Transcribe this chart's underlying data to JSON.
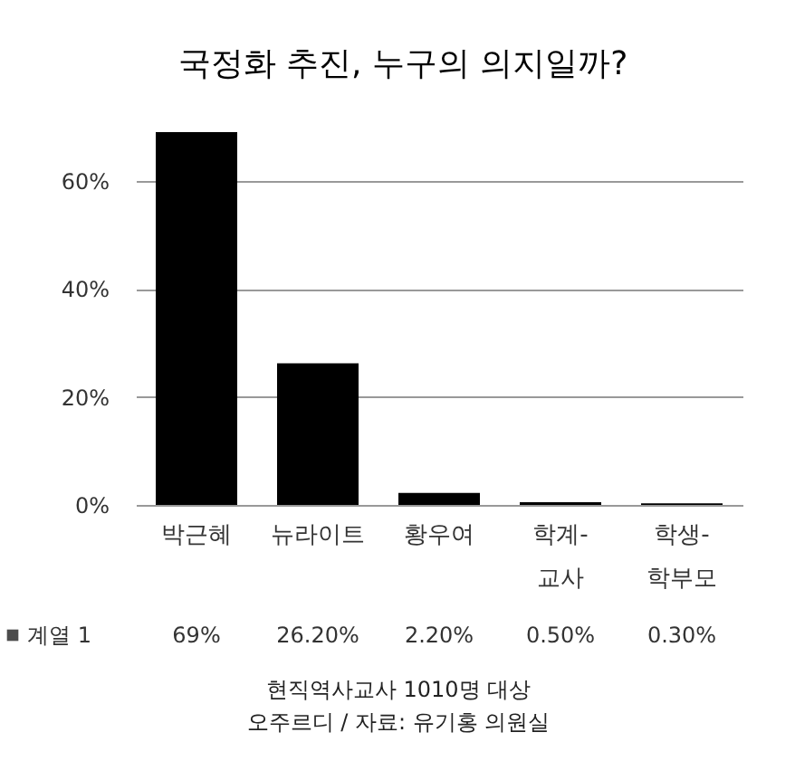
{
  "chart_data": {
    "type": "bar",
    "title": "국정화 추진, 누구의 의지일까?",
    "categories": [
      "박근혜",
      "뉴라이트",
      "황우여",
      "학계-\n교사",
      "학생-\n학부모"
    ],
    "series": [
      {
        "name": "계열 1",
        "color": "#000000",
        "values": [
          69,
          26.2,
          2.2,
          0.5,
          0.3
        ],
        "value_labels": [
          "69%",
          "26.20%",
          "2.20%",
          "0.50%",
          "0.30%"
        ]
      }
    ],
    "ylim": [
      0,
      70
    ],
    "yticks": [
      {
        "value": 0,
        "label": "0%"
      },
      {
        "value": 20,
        "label": "20%"
      },
      {
        "value": 40,
        "label": "40%"
      },
      {
        "value": 60,
        "label": "60%"
      }
    ],
    "grid": "y",
    "legend": "bottom",
    "annotations": [
      "현직역사교사 1010명 대상",
      "오주르디 / 자료: 유기홍 의원실"
    ]
  }
}
